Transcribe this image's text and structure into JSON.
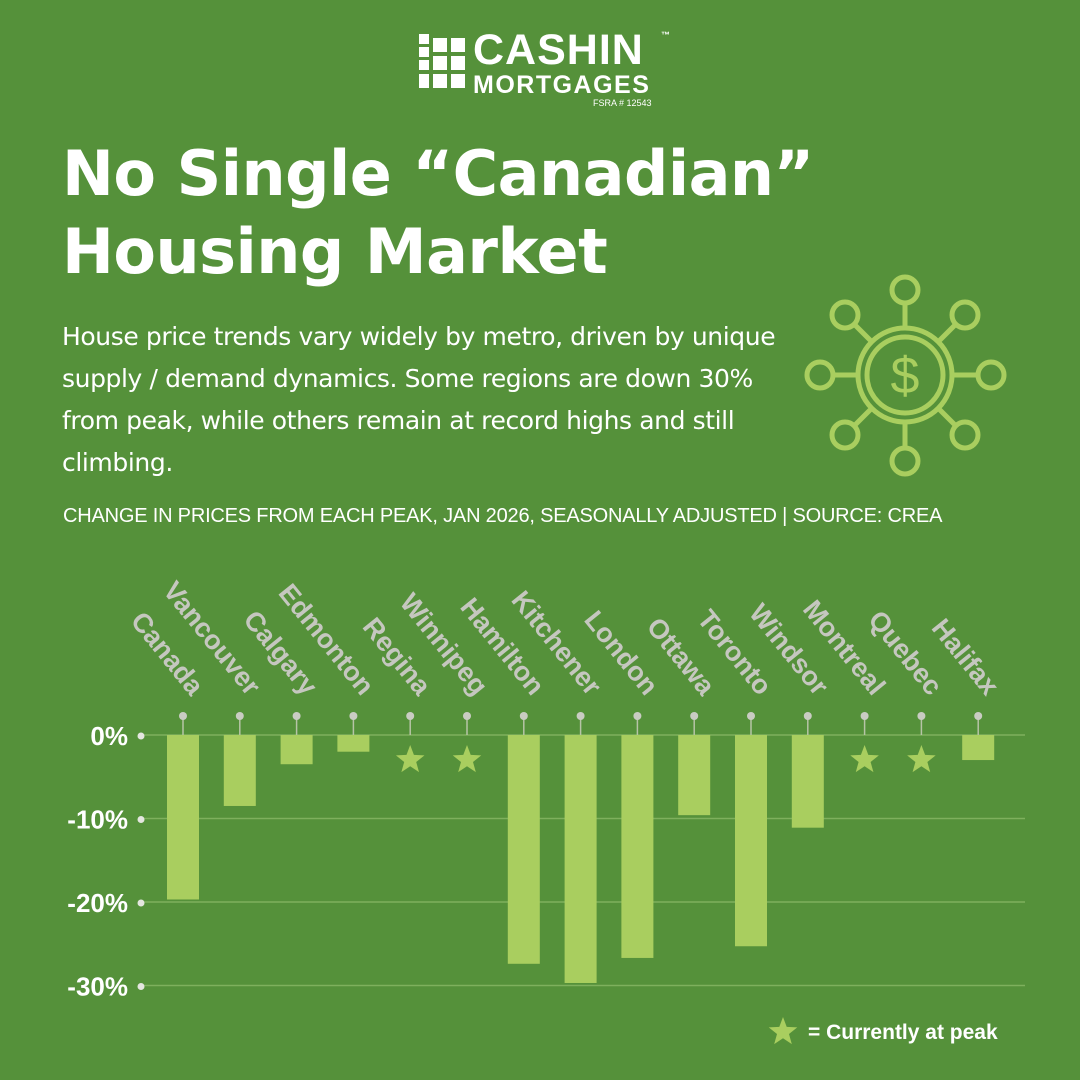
{
  "brand": {
    "name_line1": "CASHIN",
    "name_line2": "MORTGAGES",
    "tm": "™",
    "license": "FSRA # 12543"
  },
  "headline": {
    "line1": "No Single “Canadian”",
    "line2": "Housing Market"
  },
  "description": "House price trends vary widely by metro, driven by unique supply / demand dynamics. Some regions are down 30% from peak, while others remain at record highs and still climbing.",
  "chart_caption": "CHANGE IN PRICES FROM EACH PEAK, JAN 2026, SEASONALLY ADJUSTED | SOURCE: CREA",
  "icon": "money-network-icon",
  "colors": {
    "background": "#55913a",
    "bar": "#a9ce5f",
    "star": "#a9ce5f",
    "gridline": "#7eb05d",
    "text": "#ffffff",
    "category_label": "#c5c7bf"
  },
  "chart_data": {
    "type": "bar",
    "categories": [
      "Canada",
      "Vancouver",
      "Calgary",
      "Edmonton",
      "Regina",
      "Winnipeg",
      "Hamilton",
      "Kitchener",
      "London",
      "Ottawa",
      "Toronto",
      "Windsor",
      "Montreal",
      "Quebec",
      "Halifax"
    ],
    "values": [
      -19.7,
      -8.5,
      -3.5,
      -2.0,
      0,
      0,
      -27.4,
      -29.7,
      -26.7,
      -9.6,
      -25.3,
      -11.1,
      0,
      0,
      -3.0
    ],
    "at_peak": [
      false,
      false,
      false,
      false,
      true,
      true,
      false,
      false,
      false,
      false,
      false,
      false,
      true,
      true,
      false
    ],
    "yticks": [
      0,
      -10,
      -20,
      -30
    ],
    "ytick_labels": [
      "0%",
      "-10%",
      "-20%",
      "-30%"
    ],
    "ylim": [
      -30,
      0
    ],
    "grid": true,
    "legend_position": "bottom-right",
    "legend_label": "= Currently at peak"
  }
}
